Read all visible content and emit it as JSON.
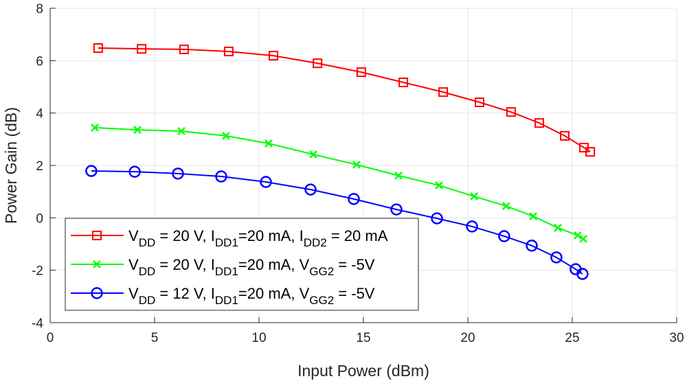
{
  "chart_data": {
    "type": "line",
    "title": "",
    "xlabel": "Input Power (dBm)",
    "ylabel": "Power Gain (dB)",
    "xlim": [
      0,
      30
    ],
    "ylim": [
      -4,
      8
    ],
    "xticks": [
      "0",
      "5",
      "10",
      "15",
      "20",
      "25",
      "30"
    ],
    "yticks": [
      "-4",
      "-2",
      "0",
      "2",
      "4",
      "6",
      "8"
    ],
    "grid": true,
    "legend_placement": "bottom-left",
    "series": [
      {
        "name": "VDD = 20 V, IDD1=20 mA, IDD2 = 20 mA",
        "legend_parts": [
          [
            "V",
            ""
          ],
          [
            "DD",
            "sub"
          ],
          [
            " = 20 V, I",
            ""
          ],
          [
            "DD1",
            "sub"
          ],
          [
            "=20 mA, I",
            ""
          ],
          [
            "DD2",
            "sub"
          ],
          [
            " = 20 mA",
            ""
          ]
        ],
        "color": "#ff0000",
        "marker": "square",
        "x": [
          2.3,
          4.38,
          6.41,
          8.55,
          10.69,
          12.8,
          14.9,
          16.91,
          18.82,
          20.56,
          22.07,
          23.42,
          24.64,
          25.56,
          25.86
        ],
        "y": [
          6.48,
          6.45,
          6.43,
          6.35,
          6.19,
          5.9,
          5.56,
          5.17,
          4.8,
          4.41,
          4.04,
          3.62,
          3.13,
          2.68,
          2.52
        ]
      },
      {
        "name": "VDD = 20 V, IDD1=20 mA, VGG2 = -5V",
        "legend_parts": [
          [
            "V",
            ""
          ],
          [
            "DD",
            "sub"
          ],
          [
            " = 20 V, I",
            ""
          ],
          [
            "DD1",
            "sub"
          ],
          [
            "=20 mA, V",
            ""
          ],
          [
            "GG2",
            "sub"
          ],
          [
            " = -5V",
            ""
          ]
        ],
        "color": "#00ff00",
        "marker": "x",
        "x": [
          2.14,
          4.18,
          6.28,
          8.42,
          10.46,
          12.6,
          14.67,
          16.68,
          18.62,
          20.3,
          21.84,
          23.13,
          24.31,
          25.26,
          25.53
        ],
        "y": [
          3.44,
          3.36,
          3.31,
          3.13,
          2.84,
          2.42,
          2.03,
          1.61,
          1.24,
          0.82,
          0.45,
          0.06,
          -0.38,
          -0.67,
          -0.8
        ]
      },
      {
        "name": "VDD = 12 V, IDD1=20 mA, VGG2 = -5V",
        "legend_parts": [
          [
            "V",
            ""
          ],
          [
            "DD",
            "sub"
          ],
          [
            " = 12 V, I",
            ""
          ],
          [
            "DD1",
            "sub"
          ],
          [
            "=20 mA, V",
            ""
          ],
          [
            "GG2",
            "sub"
          ],
          [
            " = -5V",
            ""
          ]
        ],
        "color": "#0000ff",
        "marker": "circle",
        "x": [
          1.97,
          4.05,
          6.12,
          8.19,
          10.33,
          12.47,
          14.54,
          16.58,
          18.52,
          20.2,
          21.74,
          23.06,
          24.24,
          25.16,
          25.49
        ],
        "y": [
          1.79,
          1.76,
          1.69,
          1.58,
          1.37,
          1.08,
          0.72,
          0.32,
          -0.02,
          -0.33,
          -0.7,
          -1.06,
          -1.51,
          -1.96,
          -2.14
        ]
      }
    ]
  }
}
